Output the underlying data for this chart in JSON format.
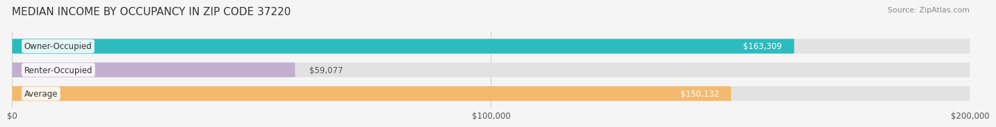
{
  "title": "MEDIAN INCOME BY OCCUPANCY IN ZIP CODE 37220",
  "source": "Source: ZipAtlas.com",
  "categories": [
    "Owner-Occupied",
    "Renter-Occupied",
    "Average"
  ],
  "values": [
    163309,
    59077,
    150132
  ],
  "bar_colors": [
    "#2bbcbf",
    "#c4aed0",
    "#f5b96e"
  ],
  "label_colors": [
    "#ffffff",
    "#555555",
    "#ffffff"
  ],
  "value_labels": [
    "$163,309",
    "$59,077",
    "$150,132"
  ],
  "xlim": [
    0,
    200000
  ],
  "xticks": [
    0,
    100000,
    200000
  ],
  "xtick_labels": [
    "$0",
    "$100,000",
    "$200,000"
  ],
  "background_color": "#f5f5f5",
  "bar_background": "#e2e2e2",
  "title_fontsize": 11,
  "source_fontsize": 8,
  "label_fontsize": 8.5,
  "value_fontsize": 8.5,
  "tick_fontsize": 8.5
}
